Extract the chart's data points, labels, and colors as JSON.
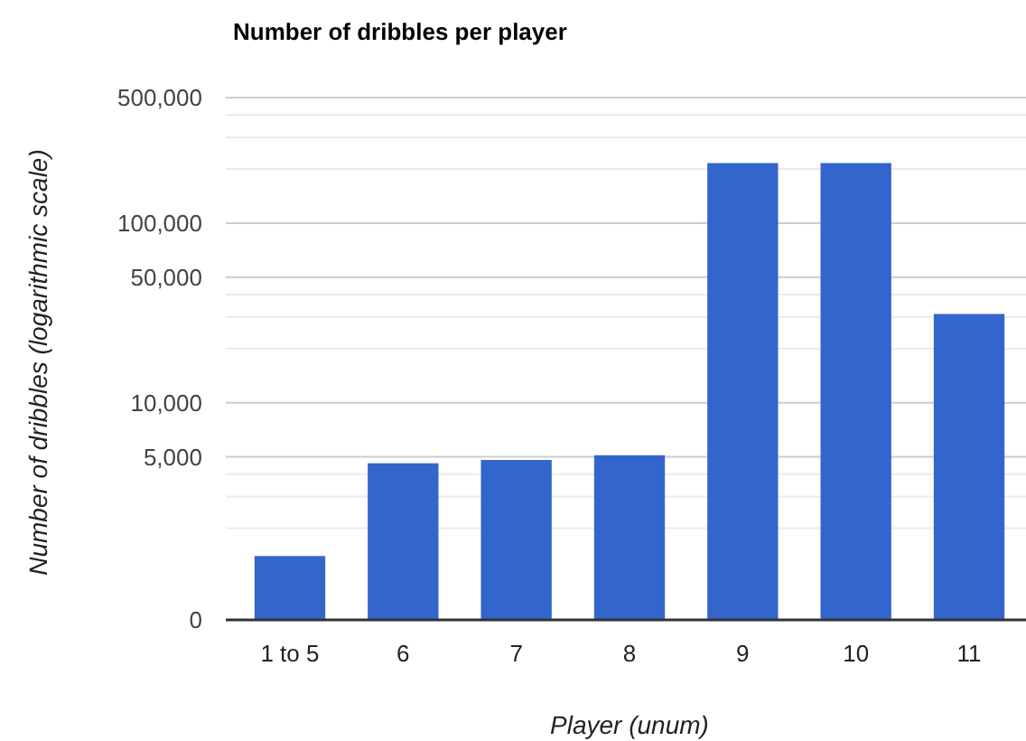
{
  "chart_data": {
    "type": "bar",
    "title": "Number of dribbles per player",
    "xlabel": "Player (unum)",
    "ylabel": "Number of dribbles (logarithmic scale)",
    "categories": [
      "1 to 5",
      "6",
      "7",
      "8",
      "9",
      "10",
      "11"
    ],
    "values": [
      1400,
      4600,
      4800,
      5100,
      216000,
      216000,
      31200
    ],
    "color": "#3366cc",
    "log": true,
    "grid": true,
    "ylim": [
      0,
      500000
    ],
    "yticks": [
      0,
      {
        "value": 2000,
        "label": null
      },
      {
        "value": 3000,
        "label": null
      },
      {
        "value": 4000,
        "label": null
      },
      {
        "value": 5000,
        "label": "5,000"
      },
      {
        "value": 10000,
        "label": "10,000"
      },
      {
        "value": 20000,
        "label": null
      },
      {
        "value": 30000,
        "label": null
      },
      {
        "value": 40000,
        "label": null
      },
      {
        "value": 50000,
        "label": "50,000"
      },
      {
        "value": 100000,
        "label": "100,000"
      },
      {
        "value": 200000,
        "label": null
      },
      {
        "value": 300000,
        "label": null
      },
      {
        "value": 400000,
        "label": null
      },
      {
        "value": 500000,
        "label": "500,000"
      }
    ]
  }
}
